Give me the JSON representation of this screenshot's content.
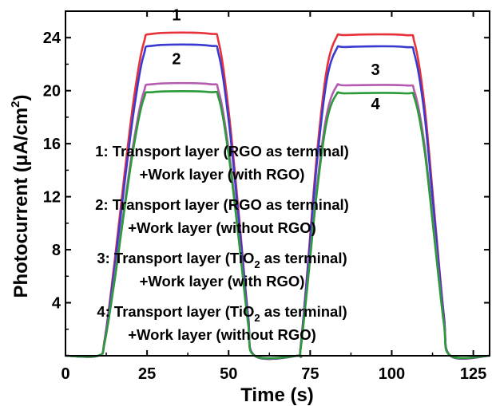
{
  "chart_data": {
    "type": "line",
    "xlabel": "Time (s)",
    "ylabel_main": "Photocurrent (μA/cm",
    "ylabel_sup": "2",
    "ylabel_close": ")",
    "xlim": [
      0,
      130
    ],
    "ylim": [
      0,
      26
    ],
    "xticks": [
      0,
      25,
      50,
      75,
      100,
      125
    ],
    "yticks": [
      4,
      8,
      12,
      16,
      20,
      24
    ],
    "grid": false,
    "series": [
      {
        "label": "1",
        "color": "#e8323a",
        "x": [
          0,
          10,
          12,
          15,
          18,
          21,
          24,
          27,
          44,
          47,
          50,
          53,
          56,
          58,
          71,
          72,
          74,
          77,
          80,
          83,
          86,
          104,
          107,
          110,
          113,
          116,
          118,
          130
        ],
        "y": [
          0,
          0,
          1.2,
          7.0,
          13.5,
          19.5,
          23.6,
          24.3,
          24.3,
          23.6,
          18.5,
          11.0,
          3.0,
          0,
          0,
          0.5,
          6.0,
          15.0,
          21.5,
          24.0,
          24.2,
          24.2,
          23.6,
          19.0,
          11.0,
          3.0,
          0,
          0
        ]
      },
      {
        "label": "2",
        "color": "#3a3ad0",
        "x": [
          0,
          10,
          12,
          15,
          18,
          21,
          24,
          27,
          44,
          47,
          50,
          53,
          56,
          58,
          71,
          72,
          74,
          77,
          80,
          83,
          86,
          104,
          107,
          110,
          113,
          116,
          118,
          130
        ],
        "y": [
          0,
          0,
          1.1,
          6.6,
          12.8,
          18.6,
          22.7,
          23.4,
          23.4,
          22.7,
          17.8,
          10.6,
          2.9,
          0,
          0,
          0.5,
          5.8,
          14.4,
          20.7,
          23.1,
          23.3,
          23.3,
          22.7,
          18.3,
          10.6,
          2.9,
          0,
          0
        ]
      },
      {
        "label": "3",
        "color": "#b45ab0",
        "x": [
          0,
          10,
          12,
          15,
          18,
          21,
          24,
          27,
          44,
          47,
          50,
          53,
          56,
          58,
          71,
          72,
          74,
          77,
          80,
          83,
          86,
          104,
          107,
          110,
          113,
          116,
          118,
          130
        ],
        "y": [
          0,
          0,
          1.0,
          5.8,
          11.2,
          16.3,
          19.9,
          20.5,
          20.5,
          19.9,
          15.6,
          9.3,
          2.5,
          0,
          0,
          0.4,
          5.1,
          12.6,
          18.1,
          20.3,
          20.4,
          20.4,
          19.9,
          16.0,
          9.3,
          2.5,
          0,
          0
        ]
      },
      {
        "label": "4",
        "color": "#2a9a3a",
        "x": [
          0,
          10,
          12,
          15,
          18,
          21,
          24,
          27,
          44,
          47,
          50,
          53,
          56,
          58,
          71,
          72,
          74,
          77,
          80,
          83,
          86,
          104,
          107,
          110,
          113,
          116,
          118,
          130
        ],
        "y": [
          0,
          0,
          1.0,
          5.6,
          10.9,
          15.9,
          19.4,
          19.9,
          19.9,
          19.4,
          15.2,
          9.0,
          2.4,
          0,
          0,
          0.4,
          4.9,
          12.2,
          17.6,
          19.7,
          19.8,
          19.8,
          19.4,
          15.6,
          9.0,
          2.4,
          0,
          0
        ]
      }
    ],
    "curve_labels": [
      {
        "text": "1",
        "x": 34,
        "y": 25.3
      },
      {
        "text": "2",
        "x": 34,
        "y": 22.0
      },
      {
        "text": "3",
        "x": 95,
        "y": 21.2
      },
      {
        "text": "4",
        "x": 95,
        "y": 18.6
      }
    ],
    "legend": [
      {
        "prefix": "1: Transport layer (RGO as terminal)",
        "second": "+Work layer (with RGO)"
      },
      {
        "prefix": "2: Transport layer (RGO as terminal)",
        "second": "+Work layer (without RGO)"
      },
      {
        "prefix": "3: Transport layer (TiO",
        "sub": "2",
        "suffix": " as terminal)",
        "second": "+Work layer (with RGO)"
      },
      {
        "prefix": "4: Transport layer (TiO",
        "sub": "2",
        "suffix": " as terminal)",
        "second": "+Work layer (without RGO)"
      }
    ]
  }
}
